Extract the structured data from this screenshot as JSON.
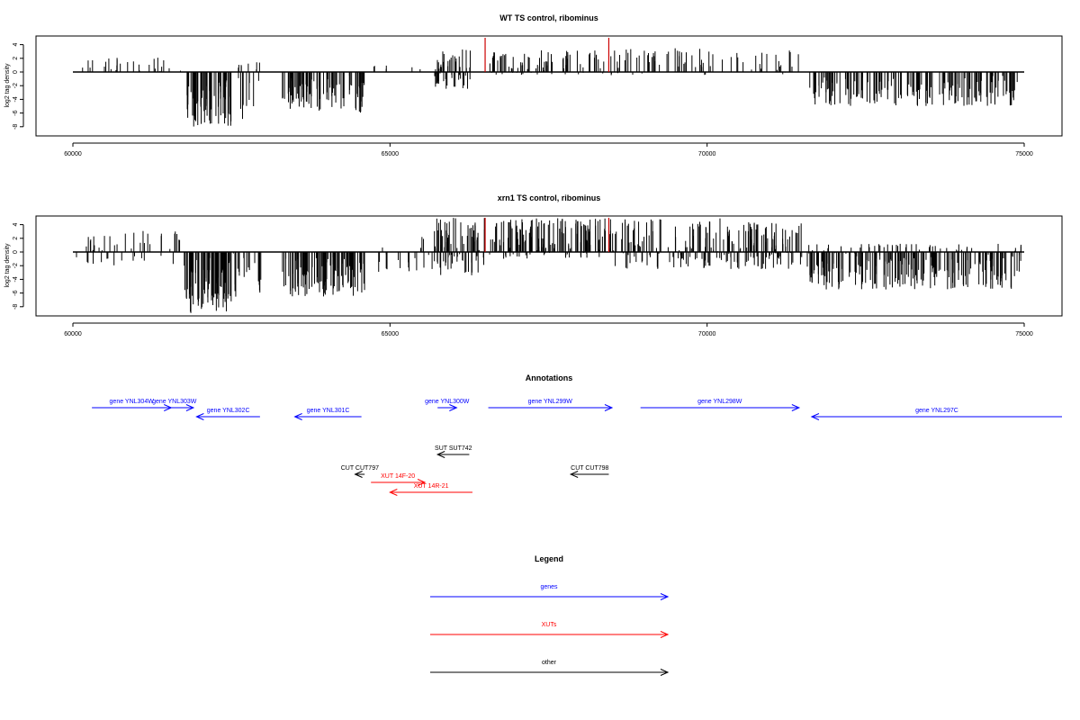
{
  "chart_data": [
    {
      "type": "bar",
      "title": "WT TS control, ribominus",
      "ylabel": "log2 tag density",
      "xlabel": "",
      "xlim": [
        60000,
        75000
      ],
      "ylim": [
        -8,
        4
      ],
      "xticks": [
        "60000",
        "65000",
        "70000",
        "75000"
      ],
      "yticks": [
        "4",
        "2",
        "0",
        "-2",
        "-4",
        "-6",
        "-8"
      ],
      "marker_color": "#cc0000",
      "markers": [
        66500,
        68450
      ],
      "segments": [
        {
          "start": 60100,
          "end": 61750,
          "min": 0,
          "max": 2.2,
          "n": 26,
          "seed": 11
        },
        {
          "start": 61800,
          "end": 62500,
          "min": -8,
          "max": -0.5,
          "n": 70,
          "seed": 12
        },
        {
          "start": 62550,
          "end": 62950,
          "min": -7,
          "max": 1.5,
          "n": 18,
          "seed": 13
        },
        {
          "start": 63300,
          "end": 64000,
          "min": -6,
          "max": -0.3,
          "n": 50,
          "seed": 14
        },
        {
          "start": 64000,
          "end": 64600,
          "min": -6,
          "max": -0.3,
          "n": 40,
          "seed": 15
        },
        {
          "start": 64700,
          "end": 65700,
          "min": 0,
          "max": 1.2,
          "n": 6,
          "seed": 16
        },
        {
          "start": 65700,
          "end": 66300,
          "min": -2.5,
          "max": 3.3,
          "n": 55,
          "seed": 17
        },
        {
          "start": 66550,
          "end": 68400,
          "min": -0.5,
          "max": 3.2,
          "n": 80,
          "seed": 18
        },
        {
          "start": 68450,
          "end": 71450,
          "min": -0.5,
          "max": 3.5,
          "n": 75,
          "seed": 19
        },
        {
          "start": 71500,
          "end": 74900,
          "min": -5,
          "max": -0.5,
          "n": 160,
          "seed": 20
        }
      ]
    },
    {
      "type": "bar",
      "title": "xrn1 TS control, ribominus",
      "ylabel": "log2 tag density",
      "xlabel": "",
      "xlim": [
        60000,
        75000
      ],
      "ylim": [
        -8,
        4
      ],
      "xticks": [
        "60000",
        "65000",
        "70000",
        "75000"
      ],
      "yticks": [
        "4",
        "2",
        "0",
        "-2",
        "-4",
        "-6",
        "-8"
      ],
      "marker_color": "#cc0000",
      "markers": [
        66500,
        68450
      ],
      "segments": [
        {
          "start": 60050,
          "end": 61700,
          "min": -2,
          "max": 3.2,
          "n": 45,
          "seed": 31
        },
        {
          "start": 61750,
          "end": 62500,
          "min": -9,
          "max": -0.5,
          "n": 85,
          "seed": 32
        },
        {
          "start": 62500,
          "end": 63000,
          "min": -7,
          "max": 0.8,
          "n": 20,
          "seed": 33
        },
        {
          "start": 63300,
          "end": 64600,
          "min": -6.5,
          "max": -0.3,
          "n": 110,
          "seed": 34
        },
        {
          "start": 64700,
          "end": 65700,
          "min": -3,
          "max": 2.2,
          "n": 20,
          "seed": 35
        },
        {
          "start": 65700,
          "end": 66500,
          "min": -3.5,
          "max": 5,
          "n": 80,
          "seed": 36
        },
        {
          "start": 66550,
          "end": 68400,
          "min": -1,
          "max": 5,
          "n": 160,
          "seed": 37
        },
        {
          "start": 68450,
          "end": 71500,
          "min": -2.5,
          "max": 5,
          "n": 220,
          "seed": 38
        },
        {
          "start": 71550,
          "end": 74950,
          "min": -5.5,
          "max": 1.2,
          "n": 260,
          "seed": 39
        }
      ]
    }
  ],
  "annotations": {
    "title": "Annotations",
    "features": [
      {
        "label": "gene YNL304W",
        "start": 60300,
        "end": 61550,
        "strand": "+",
        "color": "#0000ff",
        "row": 0
      },
      {
        "label": "gene YNL303W",
        "start": 61300,
        "end": 61900,
        "strand": "+",
        "color": "#0000ff",
        "row": 0
      },
      {
        "label": "gene YNL302C",
        "start": 61950,
        "end": 62950,
        "strand": "-",
        "color": "#0000ff",
        "row": 1
      },
      {
        "label": "gene YNL301C",
        "start": 63500,
        "end": 64550,
        "strand": "-",
        "color": "#0000ff",
        "row": 1
      },
      {
        "label": "gene YNL300W",
        "start": 65750,
        "end": 66050,
        "strand": "+",
        "color": "#0000ff",
        "row": 0
      },
      {
        "label": "gene YNL299W",
        "start": 66550,
        "end": 68500,
        "strand": "+",
        "color": "#0000ff",
        "row": 0
      },
      {
        "label": "gene YNL298W",
        "start": 68950,
        "end": 71450,
        "strand": "+",
        "color": "#0000ff",
        "row": 0
      },
      {
        "label": "gene YNL297C",
        "start": 71650,
        "end": 75600,
        "strand": "-",
        "color": "#0000ff",
        "row": 1
      },
      {
        "label": "SUT SUT742",
        "start": 65750,
        "end": 66250,
        "strand": "-",
        "color": "#000000",
        "row": 2
      },
      {
        "label": "CUT CUT797",
        "start": 64450,
        "end": 64600,
        "strand": "-",
        "color": "#000000",
        "row": 3
      },
      {
        "label": "CUT CUT798",
        "start": 67850,
        "end": 68450,
        "strand": "-",
        "color": "#000000",
        "row": 3
      },
      {
        "label": "XUT 14F-20",
        "start": 64700,
        "end": 65550,
        "strand": "+",
        "color": "#ff0000",
        "row": 4
      },
      {
        "label": "XUT 14R-21",
        "start": 65000,
        "end": 66300,
        "strand": "-",
        "color": "#ff0000",
        "row": 5
      }
    ]
  },
  "legend": {
    "title": "Legend",
    "items": [
      {
        "label": "genes",
        "color": "#0000ff"
      },
      {
        "label": "XUTs",
        "color": "#ff0000"
      },
      {
        "label": "other",
        "color": "#000000"
      }
    ]
  }
}
